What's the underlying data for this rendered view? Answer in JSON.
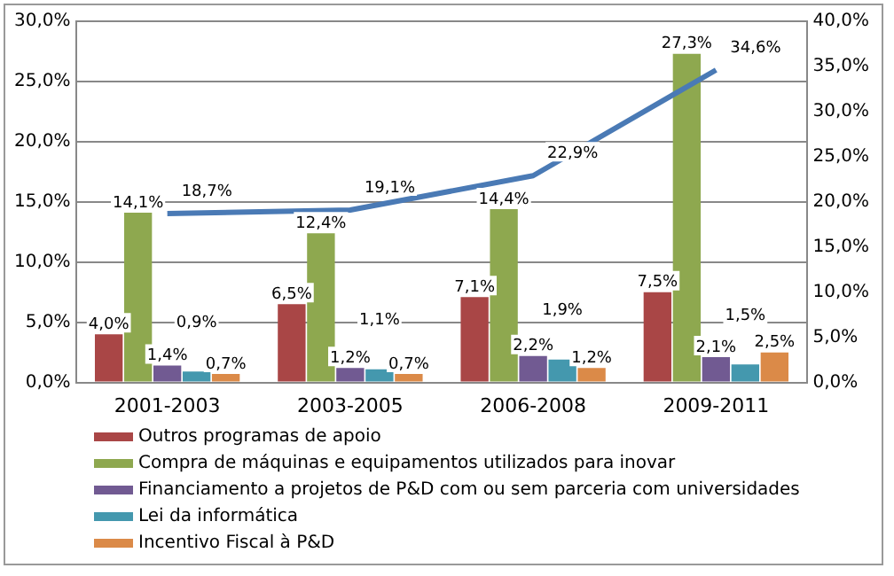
{
  "chart_data": {
    "type": "bar",
    "categories": [
      "2001-2003",
      "2003-2005",
      "2006-2008",
      "2009-2011"
    ],
    "series": [
      {
        "name": "Outros programas de apoio",
        "color": "#a94646",
        "values": [
          4.0,
          6.5,
          7.1,
          7.5
        ],
        "value_labels": [
          "4,0%",
          "6,5%",
          "7,1%",
          "7,5%"
        ]
      },
      {
        "name": "Compra de máquinas e equipamentos utilizados para inovar",
        "color": "#8ea84f",
        "values": [
          14.1,
          12.4,
          14.4,
          27.3
        ],
        "value_labels": [
          "14,1%",
          "12,4%",
          "14,4%",
          "27,3%"
        ]
      },
      {
        "name": "Financiamento a projetos de P&D com ou sem parceria com universidades",
        "color": "#715a92",
        "values": [
          1.4,
          1.2,
          2.2,
          2.1
        ],
        "value_labels": [
          "1,4%",
          "1,2%",
          "2,2%",
          "2,1%"
        ]
      },
      {
        "name": "Lei da informática",
        "color": "#4498ae",
        "values": [
          0.9,
          1.1,
          1.9,
          1.5
        ],
        "value_labels": [
          "0,9%",
          "1,1%",
          "1,9%",
          "1,5%"
        ]
      },
      {
        "name": "Incentivo Fiscal à P&D",
        "color": "#db8a48",
        "values": [
          0.7,
          0.7,
          1.2,
          2.5
        ],
        "value_labels": [
          "0,7%",
          "0,7%",
          "1,2%",
          "2,5%"
        ]
      },
      {
        "type": "line",
        "axis": "y2",
        "color": "#4a7ab5",
        "values": [
          18.7,
          19.1,
          22.9,
          34.6
        ],
        "value_labels": [
          "18,7%",
          "19,1%",
          "22,9%",
          "34,6%"
        ]
      }
    ],
    "ylim": [
      0,
      30
    ],
    "yticks": [
      {
        "value": 0,
        "label": "0,0%"
      },
      {
        "value": 5,
        "label": "5,0%"
      },
      {
        "value": 10,
        "label": "10,0%"
      },
      {
        "value": 15,
        "label": "15,0%"
      },
      {
        "value": 20,
        "label": "20,0%"
      },
      {
        "value": 25,
        "label": "25,0%"
      },
      {
        "value": 30,
        "label": "30,0%"
      }
    ],
    "y2lim": [
      0,
      40
    ],
    "y2ticks": [
      {
        "value": 0,
        "label": "0,0%"
      },
      {
        "value": 5,
        "label": "5,0%"
      },
      {
        "value": 10,
        "label": "10,0%"
      },
      {
        "value": 15,
        "label": "15,0%"
      },
      {
        "value": 20,
        "label": "20,0%"
      },
      {
        "value": 25,
        "label": "25,0%"
      },
      {
        "value": 30,
        "label": "30,0%"
      },
      {
        "value": 35,
        "label": "35,0%"
      },
      {
        "value": 40,
        "label": "40,0%"
      }
    ],
    "grid": "y",
    "legend": "bottom",
    "marker": "none",
    "line_style": "solid"
  }
}
